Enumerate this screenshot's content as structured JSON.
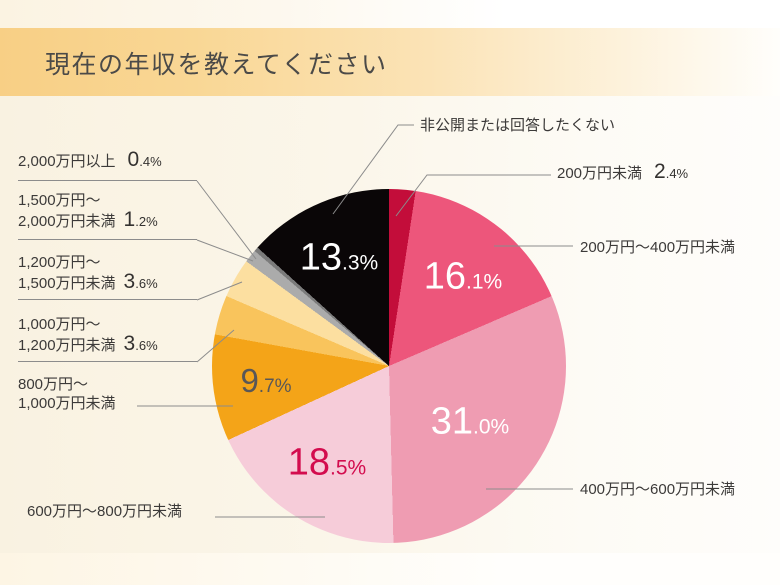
{
  "page": {
    "title": "現在の年収を教えてください"
  },
  "theme": {
    "banner_gradient_left": "#f8cf85",
    "banner_gradient_right": "#fffefb",
    "chart_bg_left": "#f9f2e1",
    "chart_bg_right": "#fefdfb",
    "leader_line_color": "#8c8c8c",
    "title_text_color": "#4b4a48",
    "label_text_color": "#3c3a39"
  },
  "chart_data": {
    "type": "pie",
    "title": "現在の年収を教えてください",
    "unit": "%",
    "direction": "clockwise",
    "start_angle_deg": 0,
    "legend_position": "callout-labels",
    "slices": [
      {
        "label": "200万円未満",
        "value": 2.4,
        "color": "#c30d3a"
      },
      {
        "label": "200万円～400万円未満",
        "value": 16.1,
        "color": "#ed567b"
      },
      {
        "label": "400万円～600万円未満",
        "value": 31.0,
        "color": "#ef9cb2"
      },
      {
        "label": "600万円～800万円未満",
        "value": 18.5,
        "color": "#f6ccd9"
      },
      {
        "label": "800万円～1,000万円未満",
        "value": 9.7,
        "color": "#f4a418"
      },
      {
        "label": "1,000万円～1,200万円未満",
        "value": 3.6,
        "color": "#f9c45c"
      },
      {
        "label": "1,200万円～1,500万円未満",
        "value": 3.6,
        "color": "#fcdfa0"
      },
      {
        "label": "1,500万円～2,000万円未満",
        "value": 1.2,
        "color": "#ababab"
      },
      {
        "label": "2,000万円以上",
        "value": 0.4,
        "color": "#7b7b7b"
      },
      {
        "label": "非公開または回答したくない",
        "value": 13.3,
        "color": "#0a0607"
      }
    ]
  },
  "inner_labels": [
    {
      "pct": "16.1%",
      "color": "#ffffff"
    },
    {
      "pct": "31.0%",
      "color": "#ffffff"
    },
    {
      "pct": "18.5%",
      "color": "#d30c4e"
    },
    {
      "pct": "9.7%",
      "color": "#595757"
    },
    {
      "pct": "13.3%",
      "color": "#ffffff"
    }
  ],
  "callouts": {
    "left": [
      {
        "line1": "2,000万円以上",
        "pct": "0.4%"
      },
      {
        "line1": "1,500万円～",
        "line2": "2,000万円未満",
        "pct": "1.2%"
      },
      {
        "line1": "1,200万円～",
        "line2": "1,500万円未満",
        "pct": "3.6%"
      },
      {
        "line1": "1,000万円～",
        "line2": "1,200万円未満",
        "pct": "3.6%"
      },
      {
        "line1": "800万円～",
        "line2": "1,000万円未満"
      },
      {
        "line1": "600万円～800万円未満"
      }
    ],
    "right": [
      {
        "line1": "非公開または回答したくない"
      },
      {
        "line1": "200万円未満",
        "pct": "2.4%"
      },
      {
        "line1": "200万円～400万円未満"
      },
      {
        "line1": "400万円～600万円未満"
      }
    ]
  }
}
